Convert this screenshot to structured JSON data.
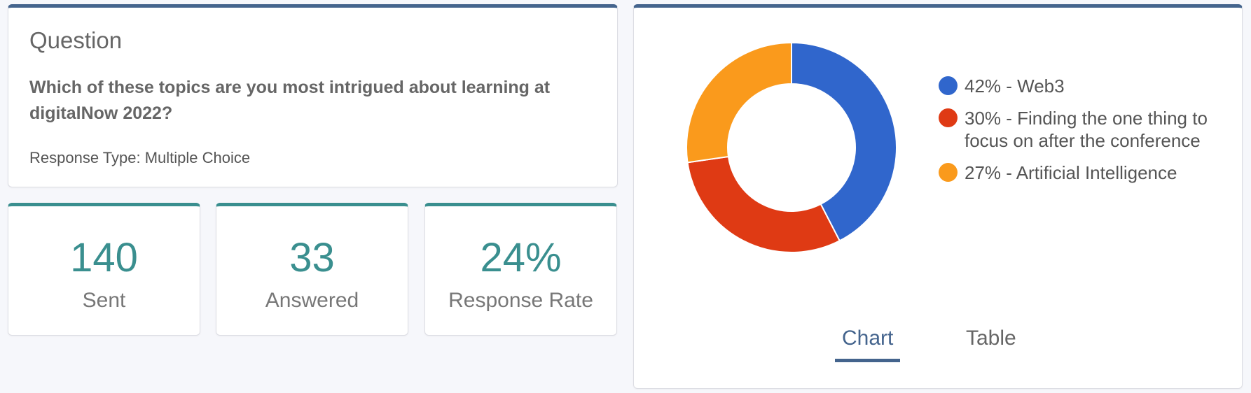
{
  "question": {
    "heading": "Question",
    "text": "Which of these topics are you most intrigued about learning at digitalNow 2022?",
    "response_type": "Response Type: Multiple Choice"
  },
  "stats": [
    {
      "value": "140",
      "label": "Sent"
    },
    {
      "value": "33",
      "label": "Answered"
    },
    {
      "value": "24%",
      "label": "Response Rate"
    }
  ],
  "tabs": {
    "chart": "Chart",
    "table": "Table"
  },
  "colors": {
    "accent": "#44648d",
    "teal": "#3a8f8f"
  },
  "chart_data": {
    "type": "pie",
    "donut": true,
    "legend_position": "right",
    "categories": [
      "Web3",
      "Finding the one thing to focus on after the conference",
      "Artificial Intelligence"
    ],
    "values": [
      42,
      30,
      27
    ],
    "colors": [
      "#3066cc",
      "#df3a14",
      "#fa9a1c"
    ],
    "legend": [
      "42% - Web3",
      "30% - Finding the one thing to focus on after the conference",
      "27% - Artificial Intelligence"
    ]
  }
}
